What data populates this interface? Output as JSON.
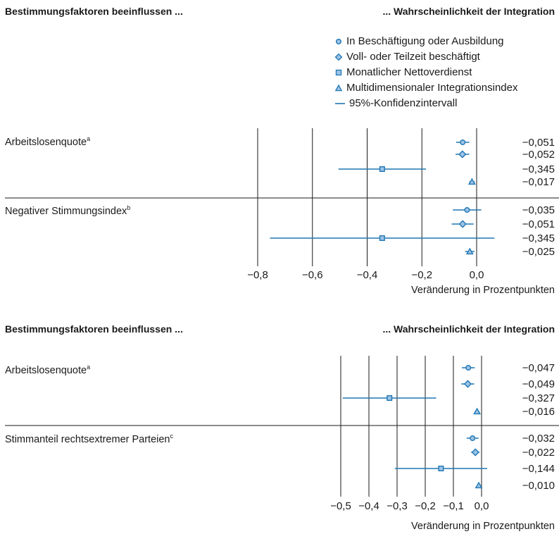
{
  "colors": {
    "marker_stroke": "#1f77b4",
    "marker_fill": "#9dc3e6",
    "axis": "#1a1a1a"
  },
  "legend": {
    "items": [
      {
        "label": "In Beschäftigung oder Ausbildung",
        "marker": "circle"
      },
      {
        "label": "Voll- oder Teilzeit beschäftigt",
        "marker": "diamond"
      },
      {
        "label": "Monatlicher Nettoverdienst",
        "marker": "square"
      },
      {
        "label": "Multidimensionaler Integrationsindex",
        "marker": "triangle"
      },
      {
        "label": "95%-Konfidenzintervall",
        "marker": "line"
      }
    ]
  },
  "chart_data": [
    {
      "type": "scatter",
      "header_left": "Bestimmungsfaktoren beeinflussen ...",
      "header_right": "... Wahrscheinlichkeit der Integration",
      "xlabel": "Veränderung in Prozentpunkten",
      "xlim": [
        -0.8,
        0.0
      ],
      "xticks": [
        "−0,8",
        "−0,6",
        "−0,4",
        "−0,2",
        "0,0"
      ],
      "tick_values": [
        -0.8,
        -0.6,
        -0.4,
        -0.2,
        0.0
      ],
      "groups": [
        {
          "name": "Arbeitslosenquote",
          "sup": "a",
          "points": [
            {
              "series": "In Beschäftigung oder Ausbildung",
              "marker": "circle",
              "value": -0.051,
              "ci": [
                -0.075,
                -0.027
              ],
              "label": "−0,051"
            },
            {
              "series": "Voll- oder Teilzeit beschäftigt",
              "marker": "diamond",
              "value": -0.052,
              "ci": [
                -0.077,
                -0.027
              ],
              "label": "−0,052"
            },
            {
              "series": "Monatlicher Nettoverdienst",
              "marker": "square",
              "value": -0.345,
              "ci": [
                -0.505,
                -0.185
              ],
              "label": "−0,345"
            },
            {
              "series": "Multidimensionaler Integrationsindex",
              "marker": "triangle",
              "value": -0.017,
              "ci": [
                -0.027,
                -0.007
              ],
              "label": "−0,017"
            }
          ]
        },
        {
          "name": "Negativer Stimmungsindex",
          "sup": "b",
          "points": [
            {
              "series": "In Beschäftigung oder Ausbildung",
              "marker": "circle",
              "value": -0.035,
              "ci": [
                -0.087,
                0.017
              ],
              "label": "−0,035"
            },
            {
              "series": "Voll- oder Teilzeit beschäftigt",
              "marker": "diamond",
              "value": -0.051,
              "ci": [
                -0.091,
                -0.011
              ],
              "label": "−0,051"
            },
            {
              "series": "Monatlicher Nettoverdienst",
              "marker": "square",
              "value": -0.345,
              "ci": [
                -0.755,
                0.065
              ],
              "label": "−0,345"
            },
            {
              "series": "Multidimensionaler Integrationsindex",
              "marker": "triangle",
              "value": -0.025,
              "ci": [
                -0.042,
                -0.008
              ],
              "label": "−0,025"
            }
          ]
        }
      ]
    },
    {
      "type": "scatter",
      "header_left": "Bestimmungsfaktoren beeinflussen ...",
      "header_right": "... Wahrscheinlichkeit der Integration",
      "xlabel": "Veränderung in Prozentpunkten",
      "xlim": [
        -0.5,
        0.0
      ],
      "xticks": [
        "−0,5",
        "−0,4",
        "−0,3",
        "−0,2",
        "−0,1",
        "0,0"
      ],
      "tick_values": [
        -0.5,
        -0.4,
        -0.3,
        -0.2,
        -0.1,
        0.0
      ],
      "groups": [
        {
          "name": "Arbeitslosenquote",
          "sup": "a",
          "points": [
            {
              "series": "In Beschäftigung oder Ausbildung",
              "marker": "circle",
              "value": -0.047,
              "ci": [
                -0.07,
                -0.024
              ],
              "label": "−0,047"
            },
            {
              "series": "Voll- oder Teilzeit beschäftigt",
              "marker": "diamond",
              "value": -0.049,
              "ci": [
                -0.072,
                -0.026
              ],
              "label": "−0,049"
            },
            {
              "series": "Monatlicher Nettoverdienst",
              "marker": "square",
              "value": -0.327,
              "ci": [
                -0.493,
                -0.161
              ],
              "label": "−0,327"
            },
            {
              "series": "Multidimensionaler Integrationsindex",
              "marker": "triangle",
              "value": -0.016,
              "ci": [
                -0.024,
                -0.008
              ],
              "label": "−0,016"
            }
          ]
        },
        {
          "name": "Stimmanteil rechtsextremer Parteien",
          "sup": "c",
          "points": [
            {
              "series": "In Beschäftigung oder Ausbildung",
              "marker": "circle",
              "value": -0.032,
              "ci": [
                -0.053,
                -0.011
              ],
              "label": "−0,032"
            },
            {
              "series": "Voll- oder Teilzeit beschäftigt",
              "marker": "diamond",
              "value": -0.022,
              "ci": [
                -0.037,
                -0.007
              ],
              "label": "−0,022"
            },
            {
              "series": "Monatlicher Nettoverdienst",
              "marker": "square",
              "value": -0.144,
              "ci": [
                -0.308,
                0.02
              ],
              "label": "−0,144"
            },
            {
              "series": "Multidimensionaler Integrationsindex",
              "marker": "triangle",
              "value": -0.01,
              "ci": [
                -0.017,
                -0.003
              ],
              "label": "−0,010"
            }
          ]
        }
      ]
    }
  ]
}
